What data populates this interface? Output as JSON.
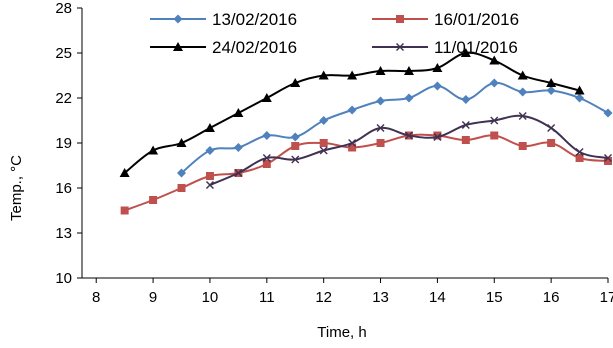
{
  "chart_data": {
    "type": "line",
    "xlabel": "Time, h",
    "ylabel": "Temp., °C",
    "xlim": [
      7.75,
      17
    ],
    "ylim": [
      10,
      28
    ],
    "xticks": [
      "8",
      "9",
      "10",
      "11",
      "12",
      "13",
      "14",
      "15",
      "16",
      "17"
    ],
    "yticks": [
      "10",
      "13",
      "16",
      "19",
      "22",
      "25",
      "28"
    ],
    "grid": false,
    "legend_position": "top",
    "series": [
      {
        "name": "13/02/2016",
        "color": "#4F81BD",
        "marker": "diamond",
        "x": [
          9.5,
          10,
          10.5,
          11,
          11.5,
          12,
          12.5,
          13,
          13.5,
          14,
          14.5,
          15,
          15.5,
          16,
          16.5,
          17
        ],
        "y": [
          17,
          18.5,
          18.7,
          19.5,
          19.4,
          20.5,
          21.2,
          21.8,
          22,
          22.8,
          21.9,
          23,
          22.4,
          22.5,
          22,
          21
        ]
      },
      {
        "name": "16/01/2016",
        "color": "#C0504D",
        "marker": "square",
        "x": [
          8.5,
          9,
          9.5,
          10,
          10.5,
          11,
          11.5,
          12,
          12.5,
          13,
          13.5,
          14,
          14.5,
          15,
          15.5,
          16,
          16.5,
          17
        ],
        "y": [
          14.5,
          15.2,
          16,
          16.8,
          17,
          17.6,
          18.8,
          19,
          18.7,
          19,
          19.5,
          19.5,
          19.2,
          19.5,
          18.8,
          19,
          18,
          17.8
        ]
      },
      {
        "name": "24/02/2016",
        "color": "#000000",
        "marker": "triangle",
        "x": [
          8.5,
          9,
          9.5,
          10,
          10.5,
          11,
          11.5,
          12,
          12.5,
          13,
          13.5,
          14,
          14.5,
          15,
          15.5,
          16,
          16.5
        ],
        "y": [
          17,
          18.5,
          19,
          20,
          21,
          22,
          23,
          23.5,
          23.5,
          23.8,
          23.8,
          24,
          25,
          24.5,
          23.5,
          23,
          22.5
        ]
      },
      {
        "name": "11/01/2016",
        "color": "#403152",
        "marker": "x",
        "x": [
          10,
          10.5,
          11,
          11.5,
          12,
          12.5,
          13,
          13.5,
          14,
          14.5,
          15,
          15.5,
          16,
          16.5,
          17
        ],
        "y": [
          16.2,
          17,
          18,
          17.9,
          18.5,
          19,
          20,
          19.5,
          19.4,
          20.2,
          20.5,
          20.8,
          20,
          18.4,
          18
        ]
      }
    ]
  }
}
